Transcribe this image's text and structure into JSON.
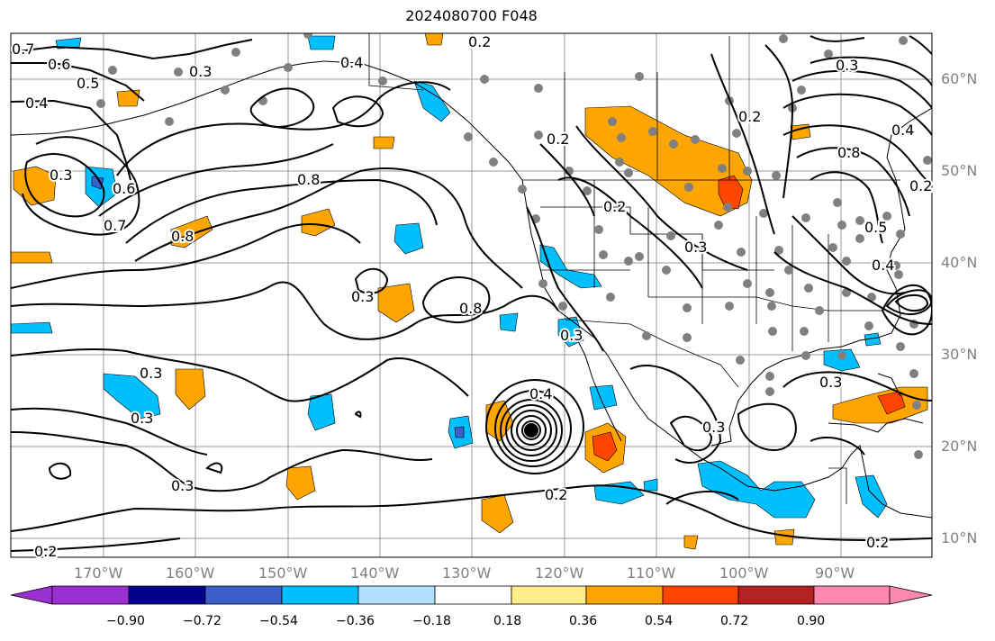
{
  "title": "2024080700 F048",
  "lat_labels": [
    "60°N",
    "50°N",
    "40°N",
    "30°N",
    "20°N",
    "10°N"
  ],
  "lon_labels": [
    "170°W",
    "160°W",
    "150°W",
    "140°W",
    "130°W",
    "120°W",
    "110°W",
    "100°W",
    "90°W"
  ],
  "colorbar": {
    "ticks": [
      "−0.90",
      "−0.72",
      "−0.54",
      "−0.36",
      "−0.18",
      "0.18",
      "0.36",
      "0.54",
      "0.72",
      "0.90"
    ],
    "colors": [
      "#9b30d0",
      "#00008b",
      "#3a5fcd",
      "#00bfff",
      "#b0e2ff",
      "#ffffff",
      "#ffec8b",
      "#ffa500",
      "#ff4500",
      "#b22222",
      "#ff88b0"
    ]
  },
  "contour_labels": [
    "0.7",
    "0.6",
    "0.5",
    "0.4",
    "0.3",
    "0.4",
    "0.3",
    "0.2",
    "0.3",
    "0.6",
    "0.7",
    "0.8",
    "0.8",
    "0.3",
    "0.8",
    "0.3",
    "0.3",
    "0.3",
    "0.4",
    "0.2",
    "0.2",
    "0.3",
    "0.3",
    "0.2",
    "0.2",
    "0.2",
    "0.3",
    "0.3",
    "0.8",
    "0.5",
    "0.4",
    "0.4",
    "0.2",
    "0.2"
  ]
}
